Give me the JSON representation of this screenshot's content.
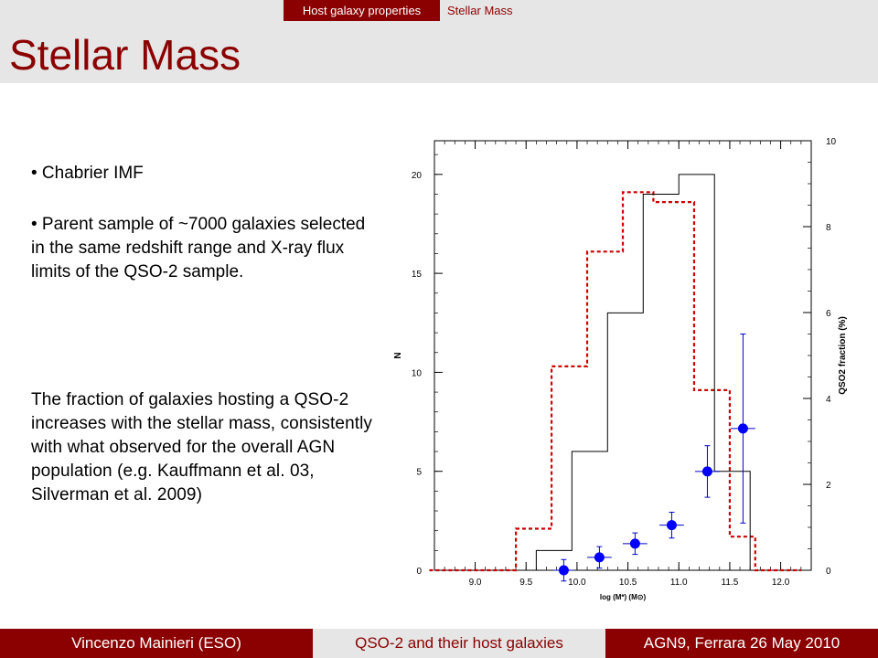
{
  "nav": {
    "section": "Host galaxy properties",
    "current": "Stellar Mass"
  },
  "title": "Stellar Mass",
  "bullets": [
    "• Chabrier IMF",
    "• Parent sample of ~7000 galaxies selected in the same redshift range and X-ray flux limits of the QSO-2 sample."
  ],
  "paragraph": "The fraction of galaxies hosting a QSO-2 increases with the stellar mass, consistently with what observed for the overall AGN population (e.g. Kauffmann et al. 03, Silverman et al. 2009)",
  "footer": {
    "author": "Vincenzo Mainieri (ESO)",
    "talk": "QSO-2 and their host galaxies",
    "event": "AGN9, Ferrara 26 May 2010"
  },
  "colors": {
    "accent": "#8b0000",
    "bar_gray": "#e6e6e6",
    "fraction_points": "#0000ff",
    "parent_hist": "#cc0000"
  },
  "chart_data": {
    "type": "histogram",
    "xlabel": "log (M*) (M⊙)",
    "ylabel": "N",
    "y2label": "QSO2 fraction (%)",
    "xlim": [
      8.6,
      12.3
    ],
    "ylim": [
      0,
      21.7
    ],
    "y2lim": [
      0,
      10
    ],
    "xticks": [
      9.0,
      9.5,
      10.0,
      10.5,
      11.0,
      11.5,
      12.0
    ],
    "yticks": [
      0,
      5,
      10,
      15,
      20
    ],
    "y2ticks": [
      0,
      2,
      4,
      6,
      8,
      10
    ],
    "qso2_histogram": {
      "edges": [
        9.6,
        9.95,
        10.3,
        10.65,
        11.0,
        11.35,
        11.7
      ],
      "counts": [
        1,
        6,
        13,
        19,
        20,
        5
      ]
    },
    "parent_histogram_scaled": {
      "edges": [
        8.55,
        9.4,
        9.75,
        10.1,
        10.45,
        10.75,
        11.15,
        11.5,
        11.75,
        12.2
      ],
      "counts": [
        0,
        2.1,
        10.3,
        16.1,
        19.1,
        18.6,
        9.1,
        1.7,
        0
      ]
    },
    "qso2_fraction": [
      {
        "x": 9.87,
        "y": 0.0,
        "xerr": 0.1,
        "yerr": 0.25
      },
      {
        "x": 10.22,
        "y": 0.3,
        "xerr": 0.12,
        "yerr": 0.25
      },
      {
        "x": 10.57,
        "y": 0.62,
        "xerr": 0.12,
        "yerr": 0.25
      },
      {
        "x": 10.93,
        "y": 1.05,
        "xerr": 0.12,
        "yerr": 0.3
      },
      {
        "x": 11.28,
        "y": 2.3,
        "xerr": 0.12,
        "yerr": 0.6
      },
      {
        "x": 11.63,
        "y": 3.3,
        "xerr": 0.12,
        "yerr": 2.2
      }
    ]
  }
}
